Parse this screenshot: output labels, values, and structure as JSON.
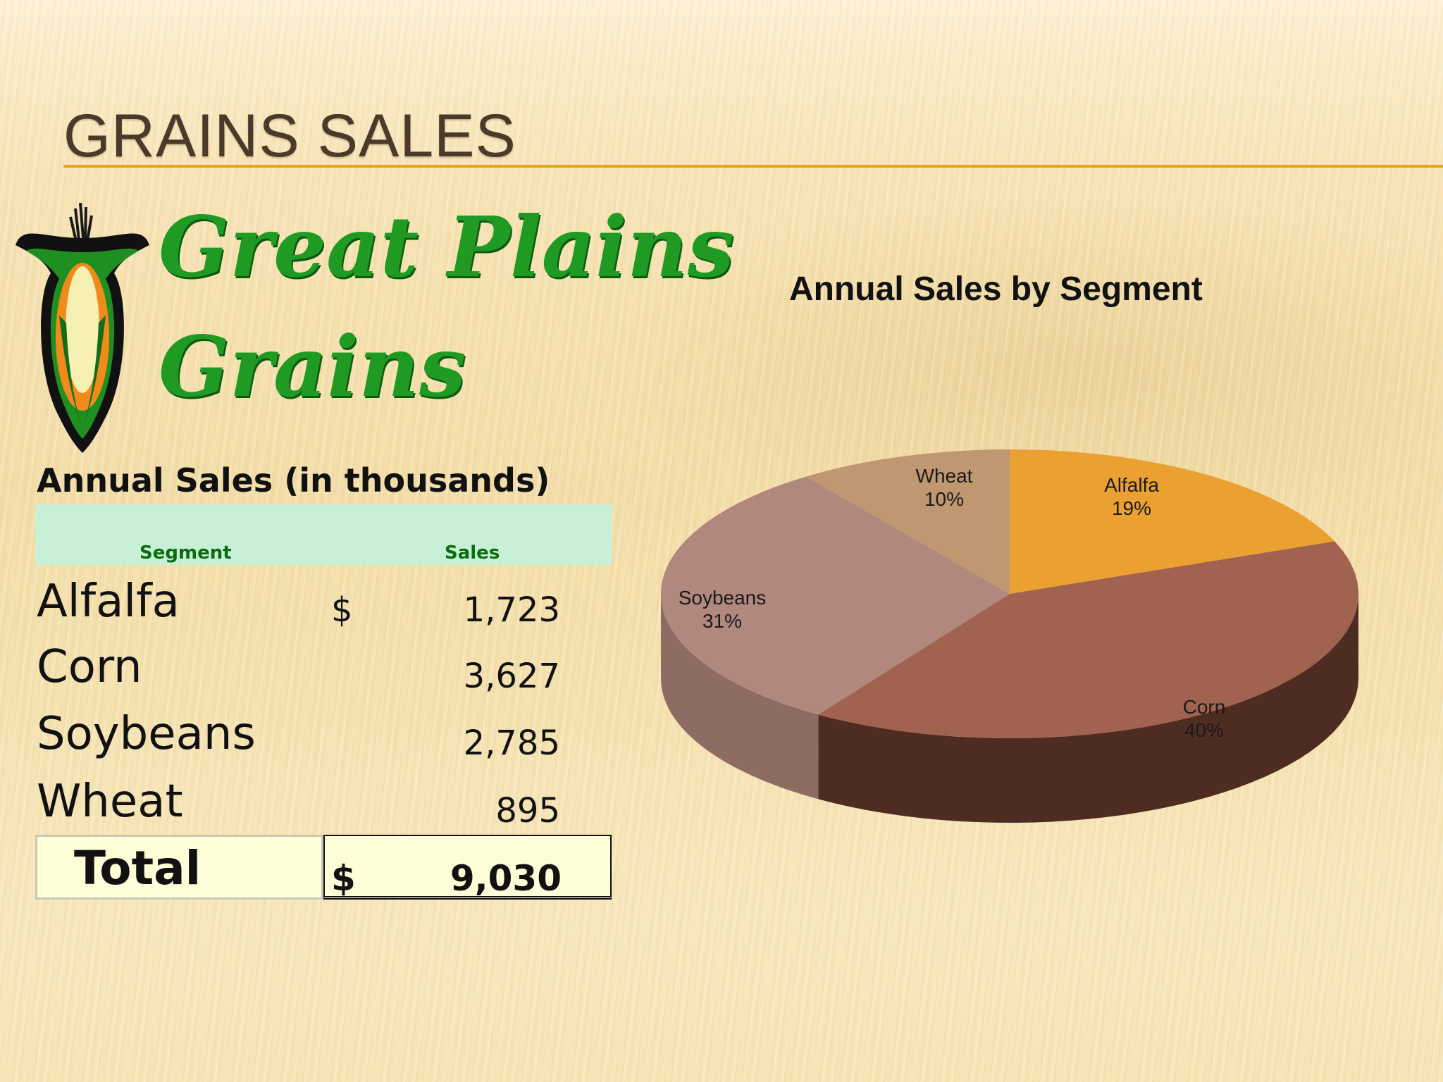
{
  "slide": {
    "title": "GRAINS SALES"
  },
  "logo": {
    "line1": "Great Plains",
    "line2": "Grains"
  },
  "table": {
    "heading": "Annual Sales (in thousands)",
    "columns": [
      "Segment",
      "Sales"
    ],
    "currency_symbol": "$",
    "rows": [
      {
        "segment": "Alfalfa",
        "sales": "1,723",
        "show_currency": true
      },
      {
        "segment": "Corn",
        "sales": "3,627",
        "show_currency": false
      },
      {
        "segment": "Soybeans",
        "sales": "2,785",
        "show_currency": false
      },
      {
        "segment": "Wheat",
        "sales": "895",
        "show_currency": false
      }
    ],
    "total": {
      "label": "Total",
      "currency": "$",
      "value": "9,030"
    }
  },
  "chart_data": {
    "type": "pie",
    "title": "Annual Sales by Segment",
    "categories": [
      "Alfalfa",
      "Corn",
      "Soybeans",
      "Wheat"
    ],
    "values": [
      1723,
      3627,
      2785,
      895
    ],
    "percent_labels": [
      "19%",
      "40%",
      "31%",
      "10%"
    ],
    "colors": [
      "#eba131",
      "#a16250",
      "#b0887e",
      "#bf9771"
    ],
    "side_colors": [
      "#b9791f",
      "#4e2c22",
      "#8e6b63",
      "#8f7050"
    ],
    "style": "3d-tilted",
    "legend": "none"
  }
}
